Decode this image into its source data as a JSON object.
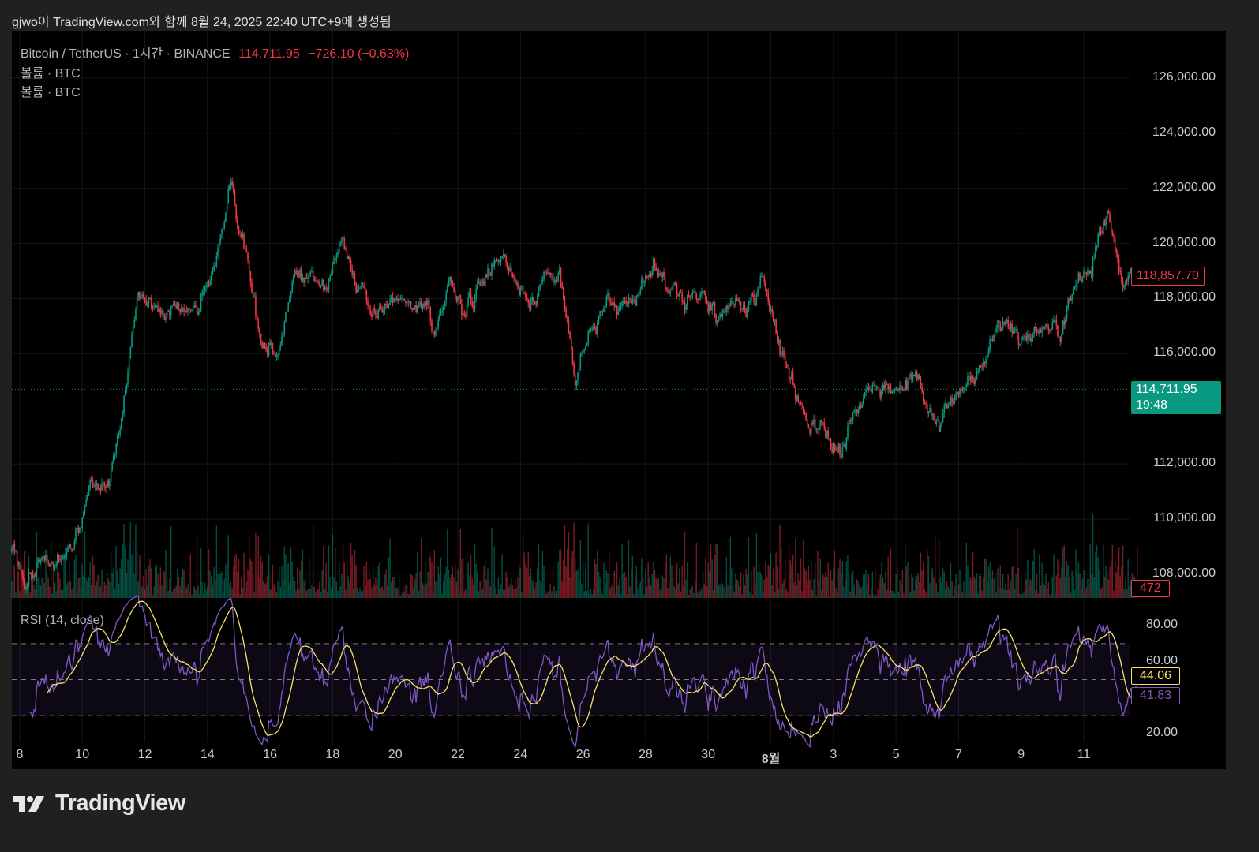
{
  "caption": "gjwo이 TradingView.com와 함께 8월 24, 2025 22:40 UTC+9에 생성됨",
  "legend": {
    "symbol": "Bitcoin / TetherUS · 1시간 · BINANCE",
    "last": "114,711.95",
    "change": "−726.10 (−0.63%)",
    "volume1": "볼륨 · BTC",
    "volume2": "볼륨 · BTC",
    "rsi": "RSI (14, close)"
  },
  "brand": {
    "name": "TradingView",
    "icon": "tradingview-logo-icon"
  },
  "colors": {
    "up": "#089981",
    "down": "#f23645",
    "rsi": "#7e57c2",
    "rsi_ma": "#f7e26b",
    "background": "#000000"
  },
  "chart_data": [
    {
      "type": "candlestick",
      "title": "Bitcoin / TetherUS · 1시간 · BINANCE",
      "interval": "1h",
      "start": "2025-07-07 18:00",
      "close_sample_interval": "12h",
      "closes": [
        108800,
        107700,
        108400,
        108500,
        108700,
        111300,
        110900,
        113500,
        118000,
        117600,
        117500,
        117500,
        118000,
        119200,
        122300,
        119700,
        116400,
        116300,
        118300,
        119200,
        118300,
        120000,
        118500,
        117500,
        117900,
        117900,
        118000,
        116800,
        118600,
        117400,
        118600,
        119700,
        118500,
        117900,
        118700,
        118700,
        115200,
        116800,
        117800,
        118000,
        118000,
        119300,
        118700,
        117800,
        118700,
        117300,
        117800,
        117300,
        118600,
        116500,
        114800,
        113400,
        113300,
        112300,
        113900,
        114700,
        114800,
        115000,
        114700,
        113300,
        114000,
        115200,
        115400,
        117000,
        116600,
        116600,
        117200,
        116700,
        118500,
        119000,
        121200,
        118500,
        118857.7
      ],
      "ylim": [
        107300,
        127000
      ],
      "yticks": [
        "126,000.00",
        "124,000.00",
        "122,000.00",
        "120,000.00",
        "118,000.00",
        "116,000.00",
        "112,000.00",
        "110,000.00",
        "108,000.00"
      ],
      "ytick_values": [
        126000,
        124000,
        122000,
        120000,
        118000,
        116000,
        112000,
        110000,
        108000
      ],
      "last_price_tag": "118,857.70",
      "crosshair_price_tag": "114,711.95",
      "crosshair_price_value": 114711.95,
      "countdown": "19:48",
      "volume_last": "472"
    },
    {
      "type": "line",
      "title": "RSI (14, close)",
      "ylim": [
        15,
        90
      ],
      "yticks": [
        "80.00",
        "60.00",
        "20.00"
      ],
      "ytick_values": [
        80,
        60,
        20
      ],
      "bands": [
        70,
        50,
        30
      ],
      "rsi_last": "41.83",
      "rsi_ma_last": "44.06"
    }
  ],
  "xaxis": {
    "ticks": [
      {
        "label": "8",
        "date": "2025-07-08"
      },
      {
        "label": "10",
        "date": "2025-07-10"
      },
      {
        "label": "12",
        "date": "2025-07-12"
      },
      {
        "label": "14",
        "date": "2025-07-14"
      },
      {
        "label": "16",
        "date": "2025-07-16"
      },
      {
        "label": "18",
        "date": "2025-07-18"
      },
      {
        "label": "20",
        "date": "2025-07-20"
      },
      {
        "label": "22",
        "date": "2025-07-22"
      },
      {
        "label": "24",
        "date": "2025-07-24"
      },
      {
        "label": "26",
        "date": "2025-07-26"
      },
      {
        "label": "28",
        "date": "2025-07-28"
      },
      {
        "label": "30",
        "date": "2025-07-30"
      },
      {
        "label": "8월",
        "date": "2025-08-01"
      },
      {
        "label": "3",
        "date": "2025-08-03"
      },
      {
        "label": "5",
        "date": "2025-08-05"
      },
      {
        "label": "7",
        "date": "2025-08-07"
      },
      {
        "label": "9",
        "date": "2025-08-09"
      },
      {
        "label": "11",
        "date": "2025-08-11"
      }
    ]
  }
}
